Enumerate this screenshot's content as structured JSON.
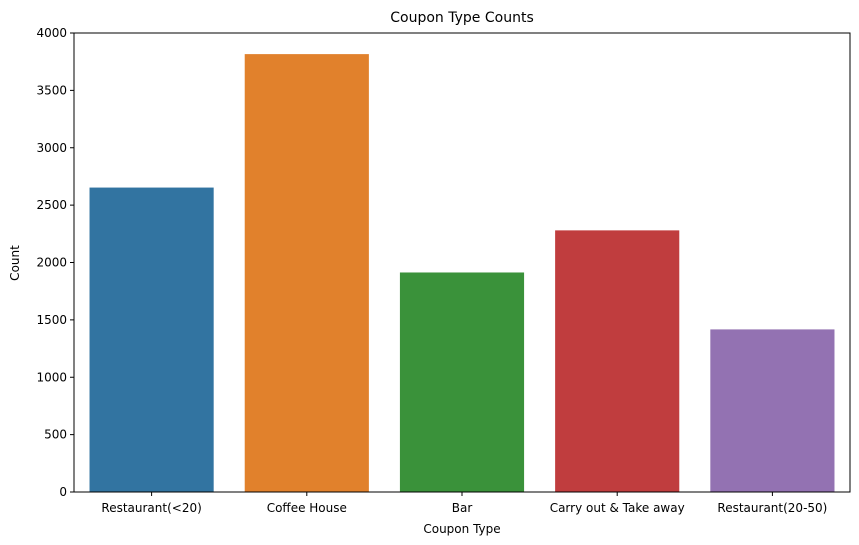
{
  "chart_data": {
    "type": "bar",
    "title": "Coupon Type Counts",
    "xlabel": "Coupon Type",
    "ylabel": "Count",
    "categories": [
      "Restaurant(<20)",
      "Coffee House",
      "Bar",
      "Carry out & Take away",
      "Restaurant(20-50)"
    ],
    "values": [
      2653,
      3816,
      1913,
      2280,
      1417
    ],
    "colors": [
      "#3274a1",
      "#e1812c",
      "#3a923a",
      "#c03d3e",
      "#9372b2"
    ],
    "ylim": [
      0,
      4000
    ],
    "yticks": [
      0,
      500,
      1000,
      1500,
      2000,
      2500,
      3000,
      3500,
      4000
    ],
    "grid": false,
    "legend": "none"
  }
}
